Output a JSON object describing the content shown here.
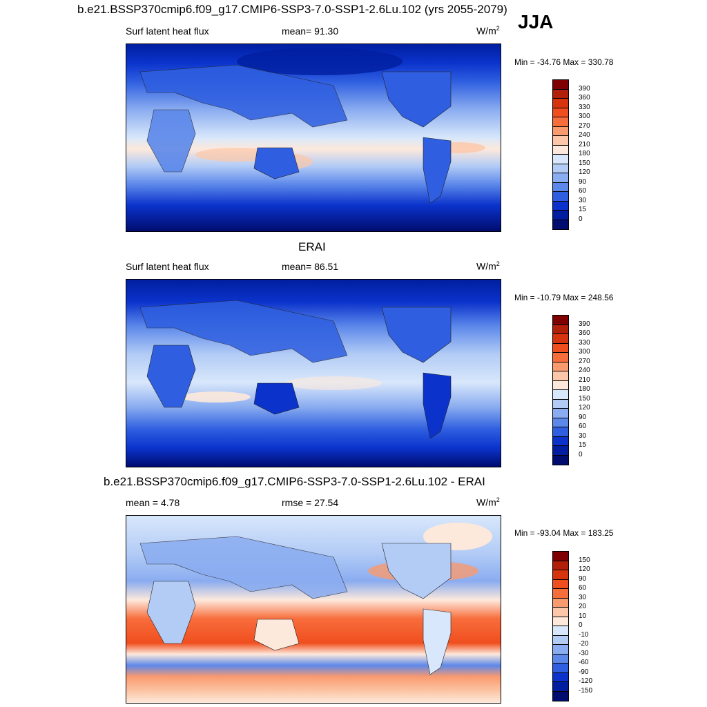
{
  "figure": {
    "title": "b.e21.BSSP370cmip6.f09_g17.CMIP6-SSP3-7.0-SSP1-2.6Lu.102 (yrs 2055-2079)",
    "season": "JJA"
  },
  "panels": [
    {
      "heading": "",
      "left_text": "Surf latent heat flux",
      "center_text": "mean=  91.30",
      "unit_base": "W/m",
      "unit_exp": "2",
      "minmax": "Min = -34.76 Max = 330.78",
      "colorbar": {
        "labels": [
          "390",
          "360",
          "330",
          "300",
          "270",
          "240",
          "210",
          "180",
          "150",
          "120",
          "90",
          "60",
          "30",
          "15",
          "0"
        ],
        "colors": [
          "#7f0000",
          "#b3200a",
          "#d8330f",
          "#f04e1e",
          "#f86d3c",
          "#f99a6f",
          "#fcc7a8",
          "#fde9dc",
          "#d8e7fb",
          "#b3ccf6",
          "#8aacf0",
          "#5c88ea",
          "#2f5fe0",
          "#0b33cc",
          "#001e9f",
          "#000c6e"
        ]
      }
    },
    {
      "heading": "ERAI",
      "left_text": "Surf latent heat flux",
      "center_text": "mean=  86.51",
      "unit_base": "W/m",
      "unit_exp": "2",
      "minmax": "Min = -10.79 Max = 248.56",
      "colorbar": {
        "labels": [
          "390",
          "360",
          "330",
          "300",
          "270",
          "240",
          "210",
          "180",
          "150",
          "120",
          "90",
          "60",
          "30",
          "15",
          "0"
        ],
        "colors": [
          "#7f0000",
          "#b3200a",
          "#d8330f",
          "#f04e1e",
          "#f86d3c",
          "#f99a6f",
          "#fcc7a8",
          "#fde9dc",
          "#d8e7fb",
          "#b3ccf6",
          "#8aacf0",
          "#5c88ea",
          "#2f5fe0",
          "#0b33cc",
          "#001e9f",
          "#000c6e"
        ]
      }
    },
    {
      "heading": "b.e21.BSSP370cmip6.f09_g17.CMIP6-SSP3-7.0-SSP1-2.6Lu.102 - ERAI",
      "left_text": "mean =   4.78",
      "center_text": "rmse =  27.54",
      "unit_base": "W/m",
      "unit_exp": "2",
      "minmax": "Min = -93.04 Max = 183.25",
      "colorbar": {
        "labels": [
          "150",
          "120",
          "90",
          "60",
          "30",
          "20",
          "10",
          "0",
          "-10",
          "-20",
          "-30",
          "-60",
          "-90",
          "-120",
          "-150"
        ],
        "colors": [
          "#7f0000",
          "#b3200a",
          "#d8330f",
          "#f04e1e",
          "#f86d3c",
          "#f99a6f",
          "#fcc7a8",
          "#fde9dc",
          "#d8e7fb",
          "#b3ccf6",
          "#8aacf0",
          "#5c88ea",
          "#2f5fe0",
          "#0b33cc",
          "#001e9f",
          "#000c6e"
        ]
      }
    }
  ]
}
